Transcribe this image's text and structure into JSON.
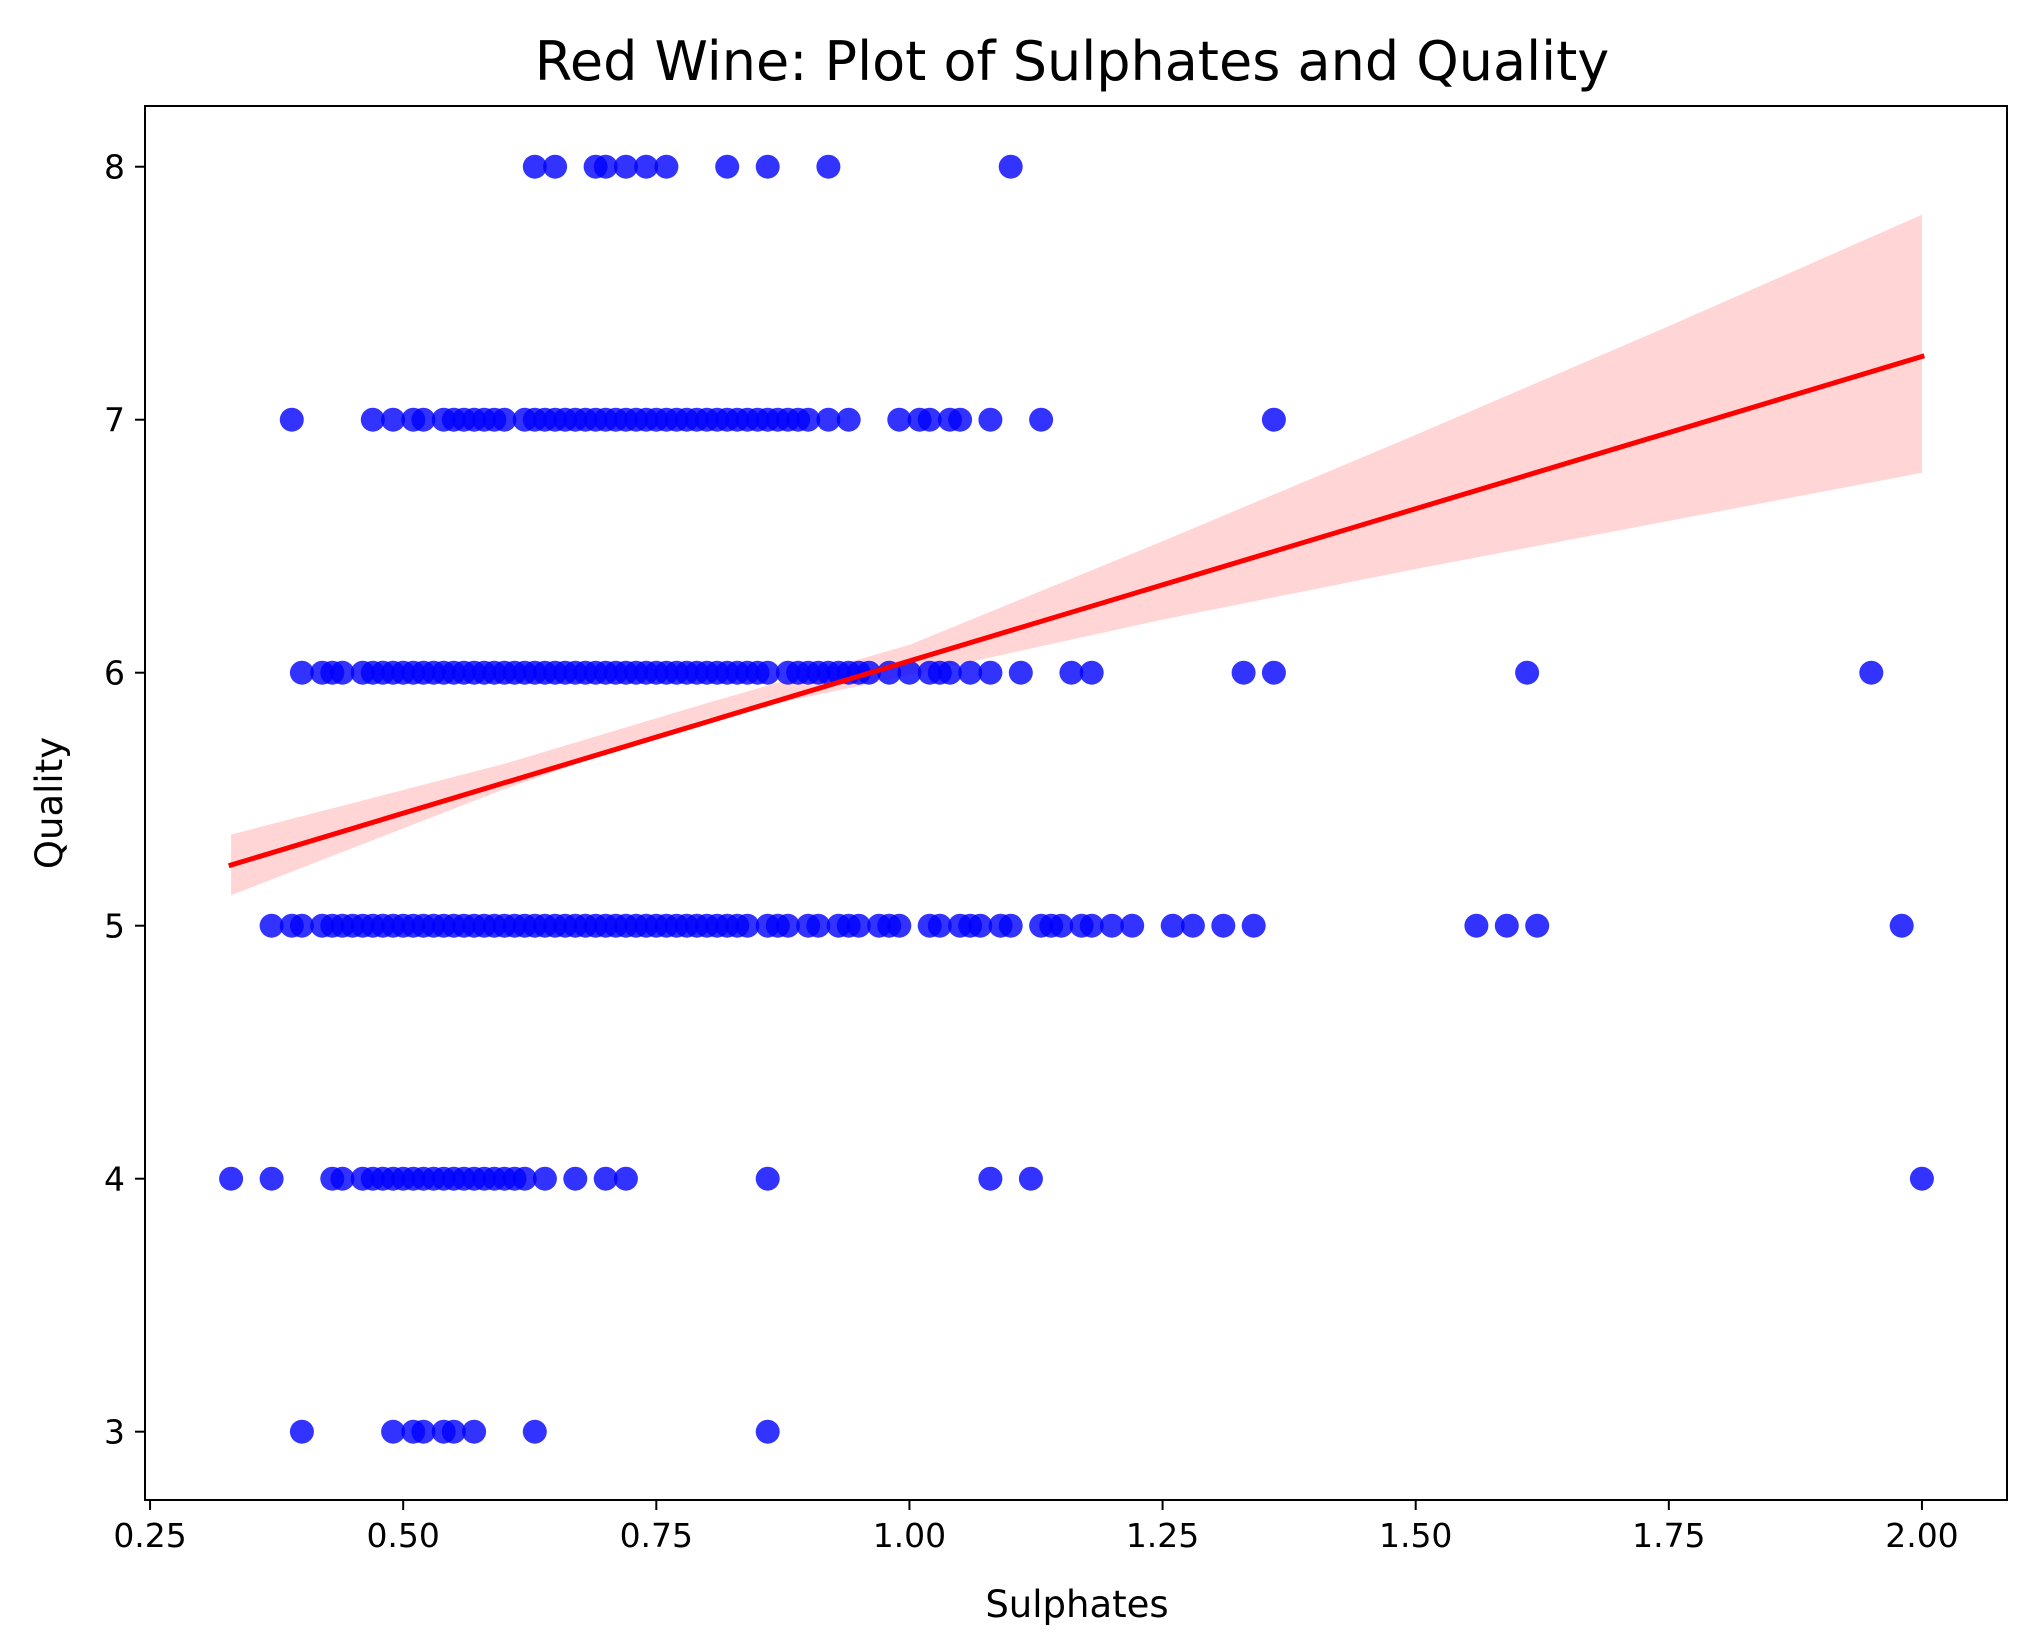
{
  "chart_data": {
    "type": "scatter",
    "title": "Red Wine: Plot of Sulphates and Quality",
    "xlabel": "Sulphates",
    "ylabel": "Quality",
    "xlim": [
      0.245,
      2.084
    ],
    "ylim": [
      2.73,
      8.24
    ],
    "xticks": [
      0.25,
      0.5,
      0.75,
      1.0,
      1.25,
      1.5,
      1.75,
      2.0
    ],
    "xtick_labels": [
      "0.25",
      "0.50",
      "0.75",
      "1.00",
      "1.25",
      "1.50",
      "1.75",
      "2.00"
    ],
    "yticks": [
      3,
      4,
      5,
      6,
      7,
      8
    ],
    "ytick_labels": [
      "3",
      "4",
      "5",
      "6",
      "7",
      "8"
    ],
    "grid": false,
    "colors": {
      "points": "#0000ff",
      "regression_line": "#ff0000",
      "confidence_band": "#ffb3b3"
    },
    "points": [
      {
        "x": 0.63,
        "y": 8
      },
      {
        "x": 0.65,
        "y": 8
      },
      {
        "x": 0.69,
        "y": 8
      },
      {
        "x": 0.7,
        "y": 8
      },
      {
        "x": 0.72,
        "y": 8
      },
      {
        "x": 0.74,
        "y": 8
      },
      {
        "x": 0.76,
        "y": 8
      },
      {
        "x": 0.82,
        "y": 8
      },
      {
        "x": 0.86,
        "y": 8
      },
      {
        "x": 0.92,
        "y": 8
      },
      {
        "x": 1.1,
        "y": 8
      },
      {
        "x": 0.39,
        "y": 7
      },
      {
        "x": 0.47,
        "y": 7
      },
      {
        "x": 0.49,
        "y": 7
      },
      {
        "x": 0.51,
        "y": 7
      },
      {
        "x": 0.52,
        "y": 7
      },
      {
        "x": 0.54,
        "y": 7
      },
      {
        "x": 0.55,
        "y": 7
      },
      {
        "x": 0.56,
        "y": 7
      },
      {
        "x": 0.57,
        "y": 7
      },
      {
        "x": 0.58,
        "y": 7
      },
      {
        "x": 0.59,
        "y": 7
      },
      {
        "x": 0.6,
        "y": 7
      },
      {
        "x": 0.62,
        "y": 7
      },
      {
        "x": 0.63,
        "y": 7
      },
      {
        "x": 0.64,
        "y": 7
      },
      {
        "x": 0.65,
        "y": 7
      },
      {
        "x": 0.66,
        "y": 7
      },
      {
        "x": 0.67,
        "y": 7
      },
      {
        "x": 0.68,
        "y": 7
      },
      {
        "x": 0.69,
        "y": 7
      },
      {
        "x": 0.7,
        "y": 7
      },
      {
        "x": 0.71,
        "y": 7
      },
      {
        "x": 0.72,
        "y": 7
      },
      {
        "x": 0.73,
        "y": 7
      },
      {
        "x": 0.74,
        "y": 7
      },
      {
        "x": 0.75,
        "y": 7
      },
      {
        "x": 0.76,
        "y": 7
      },
      {
        "x": 0.77,
        "y": 7
      },
      {
        "x": 0.78,
        "y": 7
      },
      {
        "x": 0.79,
        "y": 7
      },
      {
        "x": 0.8,
        "y": 7
      },
      {
        "x": 0.81,
        "y": 7
      },
      {
        "x": 0.82,
        "y": 7
      },
      {
        "x": 0.83,
        "y": 7
      },
      {
        "x": 0.84,
        "y": 7
      },
      {
        "x": 0.85,
        "y": 7
      },
      {
        "x": 0.86,
        "y": 7
      },
      {
        "x": 0.87,
        "y": 7
      },
      {
        "x": 0.88,
        "y": 7
      },
      {
        "x": 0.89,
        "y": 7
      },
      {
        "x": 0.9,
        "y": 7
      },
      {
        "x": 0.92,
        "y": 7
      },
      {
        "x": 0.94,
        "y": 7
      },
      {
        "x": 0.99,
        "y": 7
      },
      {
        "x": 1.01,
        "y": 7
      },
      {
        "x": 1.02,
        "y": 7
      },
      {
        "x": 1.04,
        "y": 7
      },
      {
        "x": 1.05,
        "y": 7
      },
      {
        "x": 1.08,
        "y": 7
      },
      {
        "x": 1.13,
        "y": 7
      },
      {
        "x": 1.36,
        "y": 7
      },
      {
        "x": 0.4,
        "y": 6
      },
      {
        "x": 0.42,
        "y": 6
      },
      {
        "x": 0.43,
        "y": 6
      },
      {
        "x": 0.44,
        "y": 6
      },
      {
        "x": 0.46,
        "y": 6
      },
      {
        "x": 0.47,
        "y": 6
      },
      {
        "x": 0.48,
        "y": 6
      },
      {
        "x": 0.49,
        "y": 6
      },
      {
        "x": 0.5,
        "y": 6
      },
      {
        "x": 0.51,
        "y": 6
      },
      {
        "x": 0.52,
        "y": 6
      },
      {
        "x": 0.53,
        "y": 6
      },
      {
        "x": 0.54,
        "y": 6
      },
      {
        "x": 0.55,
        "y": 6
      },
      {
        "x": 0.56,
        "y": 6
      },
      {
        "x": 0.57,
        "y": 6
      },
      {
        "x": 0.58,
        "y": 6
      },
      {
        "x": 0.59,
        "y": 6
      },
      {
        "x": 0.6,
        "y": 6
      },
      {
        "x": 0.61,
        "y": 6
      },
      {
        "x": 0.62,
        "y": 6
      },
      {
        "x": 0.63,
        "y": 6
      },
      {
        "x": 0.64,
        "y": 6
      },
      {
        "x": 0.65,
        "y": 6
      },
      {
        "x": 0.66,
        "y": 6
      },
      {
        "x": 0.67,
        "y": 6
      },
      {
        "x": 0.68,
        "y": 6
      },
      {
        "x": 0.69,
        "y": 6
      },
      {
        "x": 0.7,
        "y": 6
      },
      {
        "x": 0.71,
        "y": 6
      },
      {
        "x": 0.72,
        "y": 6
      },
      {
        "x": 0.73,
        "y": 6
      },
      {
        "x": 0.74,
        "y": 6
      },
      {
        "x": 0.75,
        "y": 6
      },
      {
        "x": 0.76,
        "y": 6
      },
      {
        "x": 0.77,
        "y": 6
      },
      {
        "x": 0.78,
        "y": 6
      },
      {
        "x": 0.79,
        "y": 6
      },
      {
        "x": 0.8,
        "y": 6
      },
      {
        "x": 0.81,
        "y": 6
      },
      {
        "x": 0.82,
        "y": 6
      },
      {
        "x": 0.83,
        "y": 6
      },
      {
        "x": 0.84,
        "y": 6
      },
      {
        "x": 0.85,
        "y": 6
      },
      {
        "x": 0.86,
        "y": 6
      },
      {
        "x": 0.88,
        "y": 6
      },
      {
        "x": 0.89,
        "y": 6
      },
      {
        "x": 0.9,
        "y": 6
      },
      {
        "x": 0.91,
        "y": 6
      },
      {
        "x": 0.92,
        "y": 6
      },
      {
        "x": 0.93,
        "y": 6
      },
      {
        "x": 0.94,
        "y": 6
      },
      {
        "x": 0.95,
        "y": 6
      },
      {
        "x": 0.96,
        "y": 6
      },
      {
        "x": 0.98,
        "y": 6
      },
      {
        "x": 1.0,
        "y": 6
      },
      {
        "x": 1.02,
        "y": 6
      },
      {
        "x": 1.03,
        "y": 6
      },
      {
        "x": 1.04,
        "y": 6
      },
      {
        "x": 1.06,
        "y": 6
      },
      {
        "x": 1.08,
        "y": 6
      },
      {
        "x": 1.11,
        "y": 6
      },
      {
        "x": 1.16,
        "y": 6
      },
      {
        "x": 1.18,
        "y": 6
      },
      {
        "x": 1.33,
        "y": 6
      },
      {
        "x": 1.36,
        "y": 6
      },
      {
        "x": 1.61,
        "y": 6
      },
      {
        "x": 1.95,
        "y": 6
      },
      {
        "x": 0.37,
        "y": 5
      },
      {
        "x": 0.39,
        "y": 5
      },
      {
        "x": 0.4,
        "y": 5
      },
      {
        "x": 0.42,
        "y": 5
      },
      {
        "x": 0.43,
        "y": 5
      },
      {
        "x": 0.44,
        "y": 5
      },
      {
        "x": 0.45,
        "y": 5
      },
      {
        "x": 0.46,
        "y": 5
      },
      {
        "x": 0.47,
        "y": 5
      },
      {
        "x": 0.48,
        "y": 5
      },
      {
        "x": 0.49,
        "y": 5
      },
      {
        "x": 0.5,
        "y": 5
      },
      {
        "x": 0.51,
        "y": 5
      },
      {
        "x": 0.52,
        "y": 5
      },
      {
        "x": 0.53,
        "y": 5
      },
      {
        "x": 0.54,
        "y": 5
      },
      {
        "x": 0.55,
        "y": 5
      },
      {
        "x": 0.56,
        "y": 5
      },
      {
        "x": 0.57,
        "y": 5
      },
      {
        "x": 0.58,
        "y": 5
      },
      {
        "x": 0.59,
        "y": 5
      },
      {
        "x": 0.6,
        "y": 5
      },
      {
        "x": 0.61,
        "y": 5
      },
      {
        "x": 0.62,
        "y": 5
      },
      {
        "x": 0.63,
        "y": 5
      },
      {
        "x": 0.64,
        "y": 5
      },
      {
        "x": 0.65,
        "y": 5
      },
      {
        "x": 0.66,
        "y": 5
      },
      {
        "x": 0.67,
        "y": 5
      },
      {
        "x": 0.68,
        "y": 5
      },
      {
        "x": 0.69,
        "y": 5
      },
      {
        "x": 0.7,
        "y": 5
      },
      {
        "x": 0.71,
        "y": 5
      },
      {
        "x": 0.72,
        "y": 5
      },
      {
        "x": 0.73,
        "y": 5
      },
      {
        "x": 0.74,
        "y": 5
      },
      {
        "x": 0.75,
        "y": 5
      },
      {
        "x": 0.76,
        "y": 5
      },
      {
        "x": 0.77,
        "y": 5
      },
      {
        "x": 0.78,
        "y": 5
      },
      {
        "x": 0.79,
        "y": 5
      },
      {
        "x": 0.8,
        "y": 5
      },
      {
        "x": 0.81,
        "y": 5
      },
      {
        "x": 0.82,
        "y": 5
      },
      {
        "x": 0.83,
        "y": 5
      },
      {
        "x": 0.84,
        "y": 5
      },
      {
        "x": 0.86,
        "y": 5
      },
      {
        "x": 0.87,
        "y": 5
      },
      {
        "x": 0.88,
        "y": 5
      },
      {
        "x": 0.9,
        "y": 5
      },
      {
        "x": 0.91,
        "y": 5
      },
      {
        "x": 0.93,
        "y": 5
      },
      {
        "x": 0.94,
        "y": 5
      },
      {
        "x": 0.95,
        "y": 5
      },
      {
        "x": 0.97,
        "y": 5
      },
      {
        "x": 0.98,
        "y": 5
      },
      {
        "x": 0.99,
        "y": 5
      },
      {
        "x": 1.02,
        "y": 5
      },
      {
        "x": 1.03,
        "y": 5
      },
      {
        "x": 1.05,
        "y": 5
      },
      {
        "x": 1.06,
        "y": 5
      },
      {
        "x": 1.07,
        "y": 5
      },
      {
        "x": 1.09,
        "y": 5
      },
      {
        "x": 1.1,
        "y": 5
      },
      {
        "x": 1.13,
        "y": 5
      },
      {
        "x": 1.14,
        "y": 5
      },
      {
        "x": 1.15,
        "y": 5
      },
      {
        "x": 1.17,
        "y": 5
      },
      {
        "x": 1.18,
        "y": 5
      },
      {
        "x": 1.2,
        "y": 5
      },
      {
        "x": 1.22,
        "y": 5
      },
      {
        "x": 1.26,
        "y": 5
      },
      {
        "x": 1.28,
        "y": 5
      },
      {
        "x": 1.31,
        "y": 5
      },
      {
        "x": 1.34,
        "y": 5
      },
      {
        "x": 1.56,
        "y": 5
      },
      {
        "x": 1.59,
        "y": 5
      },
      {
        "x": 1.62,
        "y": 5
      },
      {
        "x": 1.98,
        "y": 5
      },
      {
        "x": 0.33,
        "y": 4
      },
      {
        "x": 0.37,
        "y": 4
      },
      {
        "x": 0.43,
        "y": 4
      },
      {
        "x": 0.44,
        "y": 4
      },
      {
        "x": 0.46,
        "y": 4
      },
      {
        "x": 0.47,
        "y": 4
      },
      {
        "x": 0.48,
        "y": 4
      },
      {
        "x": 0.49,
        "y": 4
      },
      {
        "x": 0.5,
        "y": 4
      },
      {
        "x": 0.51,
        "y": 4
      },
      {
        "x": 0.52,
        "y": 4
      },
      {
        "x": 0.53,
        "y": 4
      },
      {
        "x": 0.54,
        "y": 4
      },
      {
        "x": 0.55,
        "y": 4
      },
      {
        "x": 0.56,
        "y": 4
      },
      {
        "x": 0.57,
        "y": 4
      },
      {
        "x": 0.58,
        "y": 4
      },
      {
        "x": 0.59,
        "y": 4
      },
      {
        "x": 0.6,
        "y": 4
      },
      {
        "x": 0.61,
        "y": 4
      },
      {
        "x": 0.62,
        "y": 4
      },
      {
        "x": 0.64,
        "y": 4
      },
      {
        "x": 0.67,
        "y": 4
      },
      {
        "x": 0.7,
        "y": 4
      },
      {
        "x": 0.72,
        "y": 4
      },
      {
        "x": 0.86,
        "y": 4
      },
      {
        "x": 1.08,
        "y": 4
      },
      {
        "x": 1.12,
        "y": 4
      },
      {
        "x": 2.0,
        "y": 4
      },
      {
        "x": 0.4,
        "y": 3
      },
      {
        "x": 0.49,
        "y": 3
      },
      {
        "x": 0.51,
        "y": 3
      },
      {
        "x": 0.52,
        "y": 3
      },
      {
        "x": 0.54,
        "y": 3
      },
      {
        "x": 0.55,
        "y": 3
      },
      {
        "x": 0.57,
        "y": 3
      },
      {
        "x": 0.63,
        "y": 3
      },
      {
        "x": 0.86,
        "y": 3
      }
    ],
    "regression": {
      "x": [
        0.33,
        2.0
      ],
      "y": [
        5.24,
        7.25
      ],
      "ci_upper": [
        {
          "x": 0.33,
          "y": 5.36
        },
        {
          "x": 0.6,
          "y": 5.64
        },
        {
          "x": 0.8,
          "y": 5.88
        },
        {
          "x": 1.0,
          "y": 6.11
        },
        {
          "x": 1.25,
          "y": 6.52
        },
        {
          "x": 1.5,
          "y": 6.94
        },
        {
          "x": 1.75,
          "y": 7.37
        },
        {
          "x": 2.0,
          "y": 7.81
        }
      ],
      "ci_lower": [
        {
          "x": 0.33,
          "y": 5.12
        },
        {
          "x": 0.6,
          "y": 5.54
        },
        {
          "x": 0.8,
          "y": 5.82
        },
        {
          "x": 1.0,
          "y": 5.99
        },
        {
          "x": 1.25,
          "y": 6.21
        },
        {
          "x": 1.5,
          "y": 6.41
        },
        {
          "x": 1.75,
          "y": 6.6
        },
        {
          "x": 2.0,
          "y": 6.79
        }
      ]
    }
  }
}
